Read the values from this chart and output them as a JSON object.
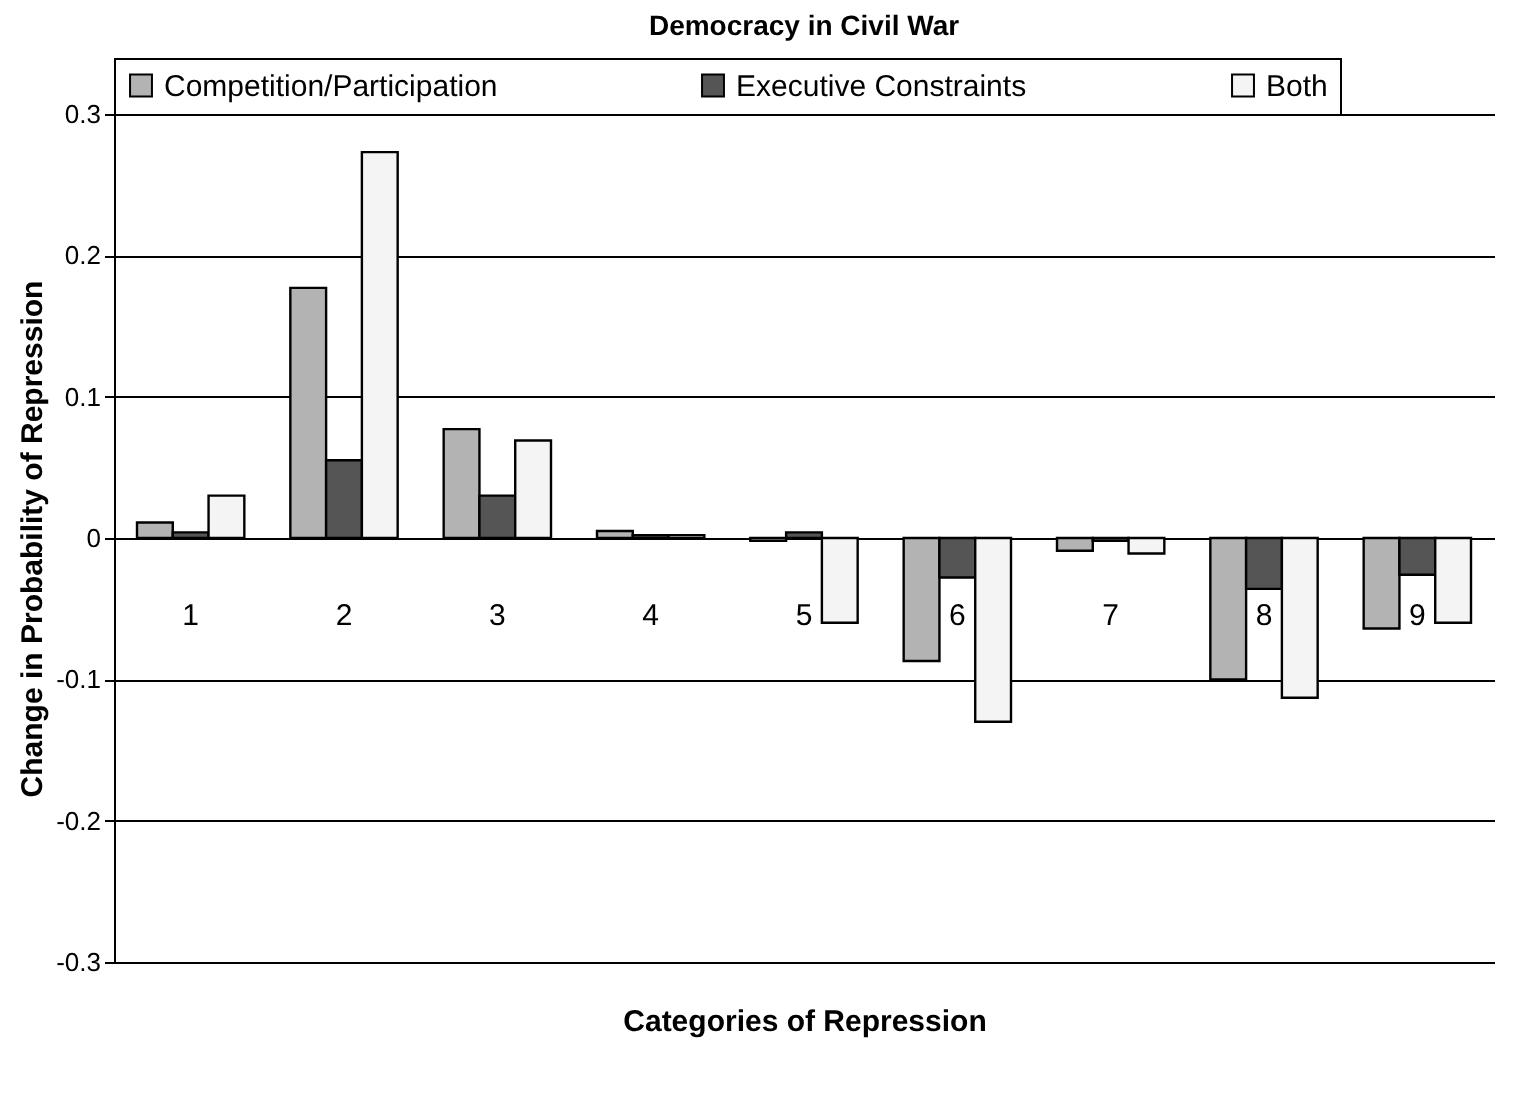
{
  "chart_data": {
    "type": "bar",
    "title": "Democracy in Civil War",
    "xlabel": "Categories of Repression",
    "ylabel": "Change in Probability of Repression",
    "categories": [
      "1",
      "2",
      "3",
      "4",
      "5",
      "6",
      "7",
      "8",
      "9"
    ],
    "series": [
      {
        "name": "Competition/Participation",
        "color": "#b3b3b3",
        "values": [
          0.011,
          0.177,
          0.077,
          0.005,
          -0.002,
          -0.087,
          -0.009,
          -0.1,
          -0.064
        ]
      },
      {
        "name": "Executive Constraints",
        "color": "#555555",
        "values": [
          0.004,
          0.055,
          0.03,
          0.002,
          0.004,
          -0.028,
          -0.002,
          -0.036,
          -0.026
        ]
      },
      {
        "name": "Both",
        "color": "#f4f4f4",
        "values": [
          0.03,
          0.273,
          0.069,
          0.002,
          -0.06,
          -0.13,
          -0.011,
          -0.113,
          -0.06
        ]
      }
    ],
    "ylim": [
      -0.3,
      0.3
    ],
    "yticks": [
      -0.3,
      -0.2,
      -0.1,
      0,
      0.1,
      0.2,
      0.3
    ],
    "grid": "y",
    "legend": "top"
  }
}
